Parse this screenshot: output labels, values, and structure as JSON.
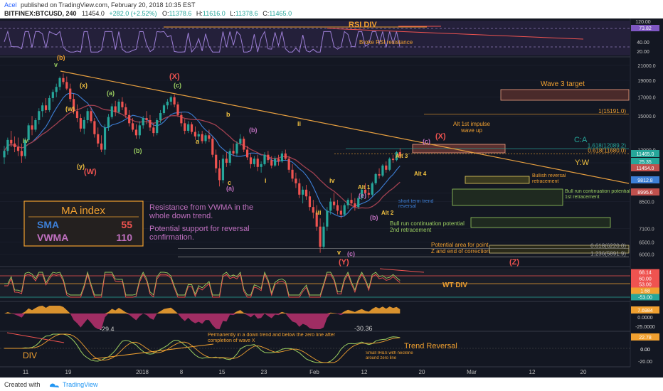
{
  "header": {
    "author": "Acel",
    "published": "published on TradingView.com, February 20, 2018 10:35 EST",
    "symbol": "BITFINEX:BTCUSD, 240",
    "last": "11454.0",
    "change": "+282.0 (+2.52%)",
    "o_label": "O:",
    "o": "11378.6",
    "h_label": "H:",
    "h": "11616.0",
    "l_label": "L:",
    "l": "11378.6",
    "c_label": "C:",
    "c": "11465.0"
  },
  "footer": {
    "created_with": "Created with",
    "brand": "TradingView"
  },
  "colors": {
    "background": "#131722",
    "up": "#26a69a",
    "down": "#ef5350",
    "sma": "#3d7fd6",
    "vwma": "#c0504d",
    "annotation": "#f0a030",
    "trendline": "#e8a040"
  },
  "chart_data": [
    {
      "type": "line",
      "name": "rsi-panel",
      "y_ticks": [
        "120.00",
        "40.00",
        "20.00"
      ],
      "price_labels": [
        {
          "text": "73.82",
          "color": "#7e57c2"
        }
      ],
      "annotations": [
        {
          "text": "RSI DIV"
        },
        {
          "text": "Broke RSI resistance"
        }
      ],
      "levels": [
        70,
        30
      ]
    },
    {
      "type": "candlestick",
      "name": "price-panel",
      "y_scale": "log",
      "ylim": [
        5600,
        21800
      ],
      "y_ticks": [
        21000,
        19000,
        17000,
        15000,
        12000,
        11000,
        9000,
        8500,
        7100,
        6500,
        6000
      ],
      "y_tick_labels": [
        "21000.0",
        "19000.0",
        "17000.0",
        "15000.0",
        "12000.0",
        "11000.0",
        "9000.0",
        "8500.0",
        "7100.0",
        "6500.0",
        "6000.0"
      ],
      "price_labels": [
        {
          "text": "11465.0",
          "color": "#26a69a"
        },
        {
          "text": "25.35",
          "color": "#26a69a"
        },
        {
          "text": "11454.0",
          "color": "#c0504d"
        },
        {
          "text": "9812.8",
          "color": "#3d7fd6"
        },
        {
          "text": "8995.6",
          "color": "#c0504d"
        }
      ],
      "x_ticks": [
        "11",
        "19",
        "2018",
        "8",
        "15",
        "23",
        "Feb",
        "12",
        "20",
        "Mar",
        "12",
        "20"
      ],
      "ohlc": [
        [
          11400,
          12300,
          10900,
          11900
        ],
        [
          11900,
          13000,
          11600,
          12800
        ],
        [
          12800,
          13600,
          12200,
          12500
        ],
        [
          12500,
          13100,
          11800,
          12200
        ],
        [
          12200,
          13000,
          11500,
          11900
        ],
        [
          11900,
          12500,
          11000,
          11500
        ],
        [
          11500,
          13000,
          11300,
          12800
        ],
        [
          12800,
          14300,
          12600,
          14100
        ],
        [
          14100,
          15000,
          13200,
          13700
        ],
        [
          13700,
          14800,
          13500,
          14600
        ],
        [
          14600,
          15800,
          14200,
          15500
        ],
        [
          15500,
          16400,
          14900,
          16100
        ],
        [
          16100,
          16900,
          15300,
          15600
        ],
        [
          15600,
          17200,
          15400,
          16900
        ],
        [
          16900,
          17900,
          16500,
          17600
        ],
        [
          17600,
          18600,
          17000,
          18200
        ],
        [
          18200,
          19500,
          17800,
          19300
        ],
        [
          19300,
          19900,
          18500,
          18800
        ],
        [
          18800,
          19500,
          17800,
          18000
        ],
        [
          18000,
          18600,
          16500,
          16800
        ],
        [
          16800,
          17400,
          15200,
          15500
        ],
        [
          15500,
          16200,
          14400,
          14800
        ],
        [
          14800,
          15200,
          13500,
          13800
        ],
        [
          13800,
          14900,
          13300,
          14600
        ],
        [
          14600,
          15800,
          14300,
          15500
        ],
        [
          15500,
          15900,
          14300,
          14500
        ],
        [
          14500,
          14800,
          13000,
          13300
        ],
        [
          13300,
          13900,
          12200,
          12500
        ],
        [
          12500,
          13200,
          11800,
          12000
        ],
        [
          12000,
          14200,
          11600,
          13900
        ],
        [
          13900,
          15200,
          13600,
          14900
        ],
        [
          14900,
          16300,
          14700,
          16000
        ],
        [
          16000,
          16600,
          15000,
          15400
        ],
        [
          15400,
          16800,
          15200,
          16500
        ],
        [
          16500,
          17000,
          15600,
          15900
        ],
        [
          15900,
          16300,
          14800,
          15100
        ],
        [
          15100,
          15600,
          14000,
          14300
        ],
        [
          14300,
          14800,
          13500,
          13700
        ],
        [
          13700,
          14200,
          12900,
          13200
        ],
        [
          13200,
          14500,
          12900,
          14100
        ],
        [
          14100,
          15000,
          13800,
          14800
        ],
        [
          14800,
          15500,
          14200,
          14600
        ],
        [
          14600,
          15100,
          13600,
          13900
        ],
        [
          13900,
          14300,
          13100,
          13400
        ],
        [
          13400,
          14800,
          13200,
          14600
        ],
        [
          14600,
          15600,
          14300,
          15300
        ],
        [
          15300,
          16300,
          15100,
          16100
        ],
        [
          16100,
          16800,
          15700,
          16500
        ],
        [
          16500,
          17200,
          16100,
          17000
        ],
        [
          17000,
          17300,
          15900,
          16200
        ],
        [
          16200,
          16500,
          14900,
          15100
        ],
        [
          15100,
          15400,
          14000,
          14300
        ],
        [
          14300,
          14700,
          13300,
          13600
        ],
        [
          13600,
          14500,
          13400,
          14200
        ],
        [
          14200,
          14400,
          13300,
          13500
        ],
        [
          13500,
          14000,
          12800,
          13100
        ],
        [
          13100,
          13600,
          12600,
          13300
        ],
        [
          13300,
          13600,
          12500,
          12700
        ],
        [
          12700,
          13400,
          12500,
          13200
        ],
        [
          13200,
          13700,
          12600,
          12900
        ],
        [
          12900,
          13100,
          11400,
          11600
        ],
        [
          11600,
          12000,
          10300,
          10600
        ],
        [
          10600,
          11200,
          9400,
          9800
        ],
        [
          9800,
          11600,
          9600,
          11300
        ],
        [
          11300,
          11800,
          10700,
          11000
        ],
        [
          11000,
          12100,
          10800,
          11900
        ],
        [
          11900,
          12500,
          11500,
          11700
        ],
        [
          11700,
          12700,
          11500,
          12500
        ],
        [
          12500,
          13300,
          12300,
          12900
        ],
        [
          12900,
          13100,
          11800,
          12000
        ],
        [
          12000,
          12300,
          11200,
          11400
        ],
        [
          11400,
          11700,
          10600,
          10900
        ],
        [
          10900,
          11500,
          10700,
          11300
        ],
        [
          11300,
          11600,
          10400,
          10700
        ],
        [
          10700,
          11100,
          10300,
          10900
        ],
        [
          10900,
          11800,
          10800,
          11600
        ],
        [
          11600,
          11900,
          11000,
          11200
        ],
        [
          11200,
          11500,
          10600,
          10800
        ],
        [
          10800,
          11500,
          10700,
          11300
        ],
        [
          11300,
          11600,
          10800,
          11100
        ],
        [
          11100,
          11900,
          11000,
          11700
        ],
        [
          11700,
          12000,
          11200,
          11300
        ],
        [
          11300,
          11500,
          10300,
          10500
        ],
        [
          10500,
          10900,
          9700,
          9900
        ],
        [
          9900,
          10300,
          9300,
          9600
        ],
        [
          9600,
          9900,
          8700,
          8900
        ],
        [
          8900,
          9400,
          8400,
          9200
        ],
        [
          9200,
          9500,
          8600,
          8800
        ],
        [
          8800,
          9100,
          8000,
          8200
        ],
        [
          8200,
          8600,
          7600,
          7900
        ],
        [
          7900,
          8300,
          7000,
          7200
        ],
        [
          7200,
          7600,
          6050,
          6300
        ],
        [
          6300,
          7400,
          6200,
          7200
        ],
        [
          7200,
          8200,
          7000,
          8000
        ],
        [
          8000,
          8700,
          7800,
          8500
        ],
        [
          8500,
          9000,
          8100,
          8300
        ],
        [
          8300,
          8600,
          7800,
          8000
        ],
        [
          8000,
          8300,
          7600,
          7800
        ],
        [
          7800,
          8400,
          7700,
          8300
        ],
        [
          8300,
          8700,
          8100,
          8600
        ],
        [
          8600,
          9000,
          8300,
          8400
        ],
        [
          8400,
          8700,
          8000,
          8200
        ],
        [
          8200,
          8800,
          8100,
          8700
        ],
        [
          8700,
          9300,
          8600,
          9200
        ],
        [
          9200,
          9600,
          8900,
          9000
        ],
        [
          9000,
          9300,
          8700,
          8900
        ],
        [
          8900,
          9700,
          8800,
          9600
        ],
        [
          9600,
          10300,
          9500,
          10200
        ],
        [
          10200,
          10600,
          9900,
          10100
        ],
        [
          10100,
          10900,
          10000,
          10800
        ],
        [
          10800,
          11100,
          10300,
          10500
        ],
        [
          10500,
          11400,
          10400,
          11300
        ],
        [
          11300,
          11600,
          11000,
          11200
        ],
        [
          11200,
          11900,
          11100,
          11800
        ],
        [
          11800,
          12100,
          11300,
          11465
        ]
      ],
      "sma_period_value": "55",
      "vwma_period_value": "110",
      "targets": [
        {
          "text": "1(15191.0)",
          "value": 15191.0
        },
        {
          "text": "1.618(12089.2)",
          "value": 12089.2
        },
        {
          "text": "0.618(11680.0)",
          "value": 11680.0
        },
        {
          "text": "0.618(6220.0)",
          "value": 6220.0
        },
        {
          "text": "1.236(5891.9)",
          "value": 5891.9
        }
      ],
      "annotations": [
        {
          "text": "Wave 3 target"
        },
        {
          "text": "C:A"
        },
        {
          "text": "Y:W"
        },
        {
          "text": "Alt 1st impulse wave up"
        },
        {
          "text": "Bullish reversal retracement"
        },
        {
          "text": "Bull run continuation potential 1st retracement"
        },
        {
          "text": "Bull run continuation potential 2nd retracement"
        },
        {
          "text": "Potential area for point Z and end of correction"
        },
        {
          "text": "Resistance from VWMA in the whole down trend."
        },
        {
          "text": "Potential support for reversal confirmation."
        },
        {
          "text": "short term trend reversal"
        }
      ],
      "wave_labels": [
        "(b)",
        "v",
        "(x)",
        "(a)",
        "(w)",
        "iv",
        "(y)",
        "(W)",
        "(X)",
        "(c)",
        "(b)",
        "b",
        "a",
        "c",
        "(a)",
        "i",
        "ii",
        "(b)",
        "iii",
        "iv",
        "v",
        "(c)",
        "(Y)",
        "(e)",
        "Alt 1",
        "(b)",
        "Alt 2",
        "Alt 3",
        "Alt 4",
        "(c)",
        "(X)",
        "(Z)"
      ],
      "ma_index": {
        "title": "MA index",
        "rows": [
          {
            "name": "SMA",
            "value": "55"
          },
          {
            "name": "VWMA",
            "value": "110"
          }
        ]
      }
    },
    {
      "type": "line",
      "name": "wavetrend-panel",
      "price_labels": [
        {
          "text": "68.14",
          "color": "#ef5350"
        },
        {
          "text": "60.00",
          "color": "#ef5350"
        },
        {
          "text": "53.00",
          "color": "#ef5350"
        },
        {
          "text": "1.68",
          "color": "#f0a030"
        },
        {
          "text": "-53.00",
          "color": "#26a69a"
        }
      ],
      "annotations": [
        {
          "text": "WT DIV"
        }
      ]
    },
    {
      "type": "area",
      "name": "momentum-panel",
      "price_labels": [
        {
          "text": "7.6984",
          "color": "#f0a030"
        }
      ],
      "y_ticks": [
        "0.0000",
        "-25.0000"
      ],
      "data_labels": [
        "-29.4",
        "-30.36"
      ]
    },
    {
      "type": "line",
      "name": "macd-panel",
      "price_labels": [
        {
          "text": "22.78",
          "color": "#f0a030"
        },
        {
          "text": "0.00",
          "color": "#ffffff"
        }
      ],
      "y_ticks": [
        "-20.00"
      ],
      "annotations": [
        {
          "text": "DIV"
        },
        {
          "text": "Trend Reversal"
        },
        {
          "text": "Permanently in a down trend and below the zero line after completion of wave X"
        },
        {
          "text": "Small IH&S with neckline around zero line"
        }
      ]
    }
  ]
}
